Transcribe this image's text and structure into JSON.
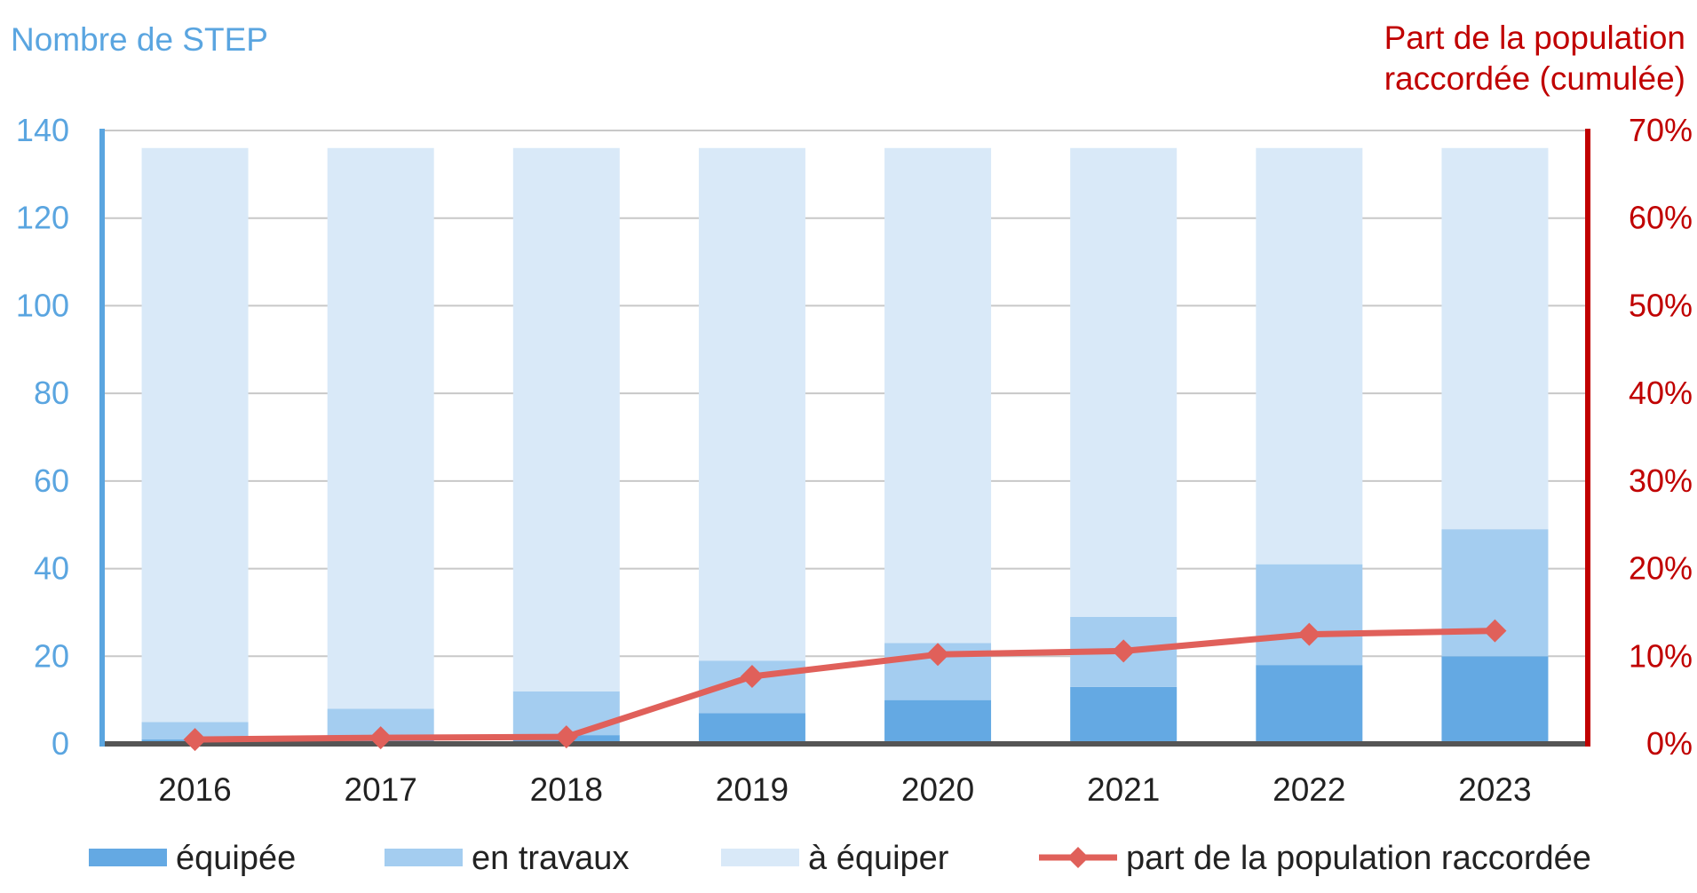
{
  "chart_data": {
    "type": "bar",
    "stacked": true,
    "categories": [
      "2016",
      "2017",
      "2018",
      "2019",
      "2020",
      "2021",
      "2022",
      "2023"
    ],
    "series": [
      {
        "name": "équipée",
        "axis": "left",
        "color": "#64a9e3",
        "values": [
          1,
          2,
          2,
          7,
          10,
          13,
          18,
          20
        ]
      },
      {
        "name": "en travaux",
        "axis": "left",
        "color": "#a4cdf0",
        "values": [
          4,
          6,
          10,
          12,
          13,
          16,
          23,
          29
        ]
      },
      {
        "name": "à équiper",
        "axis": "left",
        "color": "#d9e9f8",
        "values": [
          131,
          128,
          124,
          117,
          113,
          107,
          95,
          87
        ]
      },
      {
        "name": "part de la population raccordée",
        "type": "line",
        "axis": "right",
        "color": "#e0605a",
        "values": [
          0.5,
          0.7,
          0.8,
          7.7,
          10.2,
          10.6,
          12.5,
          12.9
        ]
      }
    ],
    "ylabel": "Nombre de STEP",
    "y2label_lines": [
      "Part de la population",
      "raccordée (cumulée)"
    ],
    "ylim": [
      0,
      140
    ],
    "yticks": [
      0,
      20,
      40,
      60,
      80,
      100,
      120,
      140
    ],
    "y2lim": [
      0,
      70
    ],
    "y2ticks": [
      "0%",
      "10%",
      "20%",
      "30%",
      "40%",
      "50%",
      "60%",
      "70%"
    ],
    "grid": true,
    "legend_position": "bottom",
    "colors": {
      "left_axis": "#5aa5e0",
      "right_axis": "#c00000",
      "grid": "#c8c8c8",
      "baseline": "#555555"
    }
  }
}
